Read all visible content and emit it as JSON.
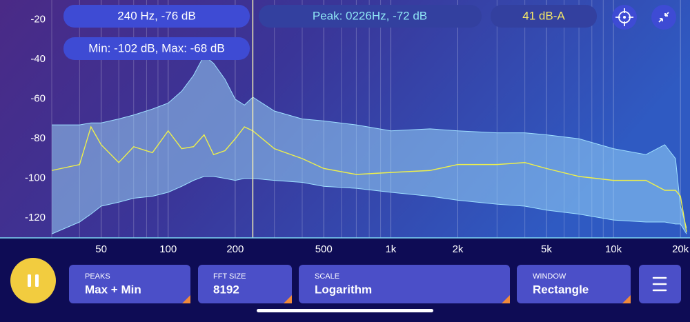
{
  "chart_data": {
    "type": "spectrum",
    "log_x": true,
    "grid": "x",
    "xlim": [
      30,
      21300
    ],
    "ylim": [
      -130,
      -10
    ],
    "xticks": [
      50,
      100,
      200,
      500,
      {
        "value": 1000,
        "label": "1k"
      },
      {
        "value": 2000,
        "label": "2k"
      },
      {
        "value": 5000,
        "label": "5k"
      },
      {
        "value": 10000,
        "label": "10k"
      },
      {
        "value": 20000,
        "label": "20k"
      }
    ],
    "xminorticks": [
      30,
      40,
      60,
      70,
      80,
      90,
      300,
      400,
      600,
      700,
      800,
      900,
      3000,
      4000,
      6000,
      7000,
      8000,
      9000
    ],
    "yticks": [
      -20,
      -40,
      -60,
      -80,
      -100,
      -120
    ],
    "cursor": 240,
    "x": [
      30,
      40,
      45,
      50,
      60,
      70,
      85,
      100,
      115,
      130,
      145,
      160,
      180,
      200,
      220,
      240,
      300,
      400,
      500,
      700,
      1000,
      1500,
      2000,
      3000,
      4000,
      5000,
      7000,
      10000,
      14000,
      17000,
      19000,
      20000,
      21300
    ],
    "series": [
      {
        "color": "#9fe0ff",
        "values": [
          -73,
          -73,
          -72,
          -72,
          -70,
          -68,
          -65,
          -62,
          -56,
          -48,
          -38,
          -42,
          -50,
          -60,
          -63,
          -59,
          -66,
          -70,
          -71,
          -73,
          -76,
          -75,
          -76,
          -77,
          -77,
          -78,
          -80,
          -85,
          -88,
          -83,
          -90,
          -114,
          -125
        ]
      },
      {
        "color": "#9fe0ff",
        "values": [
          -128,
          -122,
          -118,
          -114,
          -112,
          -110,
          -109,
          -107,
          -104,
          -101,
          -99,
          -99,
          -100,
          -101,
          -100,
          -100,
          -101,
          -102,
          -104,
          -105,
          -107,
          -109,
          -111,
          -113,
          -114,
          -116,
          -118,
          -121,
          -122,
          -122,
          -123,
          -123,
          -128
        ]
      },
      {
        "color": "#eef04a",
        "values": [
          -96,
          -93,
          -74,
          -83,
          -92,
          -84,
          -87,
          -76,
          -85,
          -84,
          -78,
          -88,
          -86,
          -80,
          -74,
          -76,
          -85,
          -90,
          -95,
          -98,
          -97,
          -96,
          -93,
          -93,
          -92,
          -95,
          -99,
          -101,
          -101,
          -106,
          -106,
          -109,
          -127
        ]
      }
    ]
  },
  "readouts": {
    "cursor": "240 Hz, -76 dB",
    "peak": "Peak: 0226Hz, -72 dB",
    "level": "41 dB-A",
    "range": "Min: -102 dB, Max: -68 dB"
  },
  "controls": [
    {
      "label": "PEAKS",
      "value": "Max + Min"
    },
    {
      "label": "FFT SIZE",
      "value": 8192
    },
    {
      "label": "SCALE",
      "value": "Logarithm"
    },
    {
      "label": "WINDOW",
      "value": "Rectangle"
    }
  ]
}
